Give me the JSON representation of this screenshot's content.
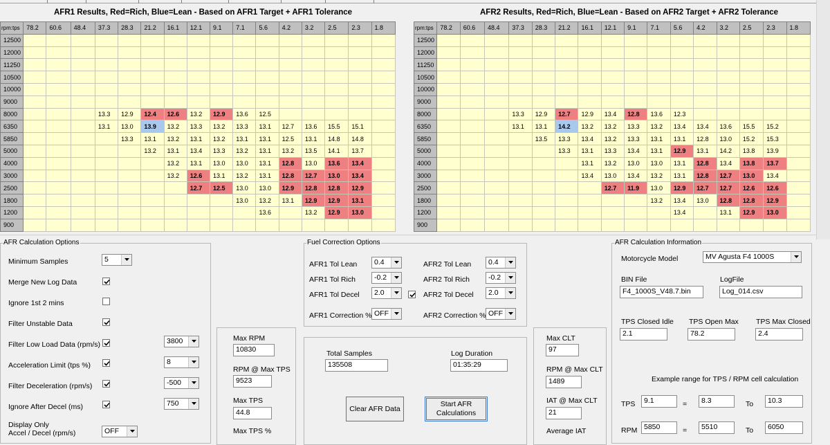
{
  "afr1": {
    "title": "AFR1 Results,  Red=Rich, Blue=Lean - Based on AFR1 Target  + AFR1 Tolerance",
    "corner": "rpm:tps",
    "tps": [
      "78.2",
      "60.6",
      "48.4",
      "37.3",
      "28.3",
      "21.2",
      "16.1",
      "12.1",
      "9.1",
      "7.1",
      "5.6",
      "4.2",
      "3.2",
      "2.5",
      "2.3",
      "1.8"
    ],
    "rows": [
      {
        "rpm": "12500",
        "cells": [
          "",
          "",
          "",
          "",
          "",
          "",
          "",
          "",
          "",
          "",
          "",
          "",
          "",
          "",
          "",
          ""
        ]
      },
      {
        "rpm": "12000",
        "cells": [
          "",
          "",
          "",
          "",
          "",
          "",
          "",
          "",
          "",
          "",
          "",
          "",
          "",
          "",
          "",
          ""
        ]
      },
      {
        "rpm": "11250",
        "cells": [
          "",
          "",
          "",
          "",
          "",
          "",
          "",
          "",
          "",
          "",
          "",
          "",
          "",
          "",
          "",
          ""
        ]
      },
      {
        "rpm": "10500",
        "cells": [
          "",
          "",
          "",
          "",
          "",
          "",
          "",
          "",
          "",
          "",
          "",
          "",
          "",
          "",
          "",
          ""
        ]
      },
      {
        "rpm": "10000",
        "cells": [
          "",
          "",
          "",
          "",
          "",
          "",
          "",
          "",
          "",
          "",
          "",
          "",
          "",
          "",
          "",
          ""
        ]
      },
      {
        "rpm": "9000",
        "cells": [
          "",
          "",
          "",
          "",
          "",
          "",
          "",
          "",
          "",
          "",
          "",
          "",
          "",
          "",
          "",
          ""
        ]
      },
      {
        "rpm": "8000",
        "cells": [
          "",
          "",
          "",
          "13.3",
          "12.9",
          "12.4",
          "12.6",
          "13.2",
          "12.9",
          "13.6",
          "12.5",
          "",
          "",
          "",
          "",
          ""
        ],
        "flags": [
          "",
          "",
          "",
          "",
          "",
          "R",
          "R",
          "",
          "R",
          "",
          "",
          "",
          "",
          "",
          "",
          ""
        ]
      },
      {
        "rpm": "6350",
        "cells": [
          "",
          "",
          "",
          "13.1",
          "13.0",
          "13.9",
          "13.2",
          "13.3",
          "13.2",
          "13.3",
          "13.1",
          "12.7",
          "13.6",
          "15.5",
          "15.1",
          ""
        ],
        "flags": [
          "",
          "",
          "",
          "",
          "",
          "L",
          "",
          "",
          "",
          "",
          "",
          "",
          "",
          "",
          "",
          ""
        ]
      },
      {
        "rpm": "5850",
        "cells": [
          "",
          "",
          "",
          "",
          "13.3",
          "13.1",
          "13.2",
          "13.1",
          "13.2",
          "13.1",
          "13.1",
          "12.5",
          "13.1",
          "14.8",
          "14.8",
          ""
        ]
      },
      {
        "rpm": "5000",
        "cells": [
          "",
          "",
          "",
          "",
          "",
          "13.2",
          "13.1",
          "13.4",
          "13.3",
          "13.2",
          "13.1",
          "13.2",
          "13.5",
          "14.1",
          "13.7",
          ""
        ]
      },
      {
        "rpm": "4000",
        "cells": [
          "",
          "",
          "",
          "",
          "",
          "",
          "13.2",
          "13.1",
          "13.0",
          "13.0",
          "13.1",
          "12.8",
          "13.0",
          "13.6",
          "13.4",
          ""
        ],
        "flags": [
          "",
          "",
          "",
          "",
          "",
          "",
          "",
          "",
          "",
          "",
          "",
          "R",
          "",
          "R",
          "R",
          ""
        ]
      },
      {
        "rpm": "3000",
        "cells": [
          "",
          "",
          "",
          "",
          "",
          "",
          "13.2",
          "12.6",
          "13.1",
          "13.2",
          "13.1",
          "12.8",
          "12.7",
          "13.0",
          "13.4",
          ""
        ],
        "flags": [
          "",
          "",
          "",
          "",
          "",
          "",
          "",
          "R",
          "",
          "",
          "",
          "R",
          "R",
          "R",
          "R",
          ""
        ]
      },
      {
        "rpm": "2500",
        "cells": [
          "",
          "",
          "",
          "",
          "",
          "",
          "",
          "12.7",
          "12.5",
          "13.0",
          "13.0",
          "12.9",
          "12.8",
          "12.8",
          "12.9",
          ""
        ],
        "flags": [
          "",
          "",
          "",
          "",
          "",
          "",
          "",
          "R",
          "R",
          "",
          "",
          "R",
          "R",
          "R",
          "R",
          ""
        ]
      },
      {
        "rpm": "1800",
        "cells": [
          "",
          "",
          "",
          "",
          "",
          "",
          "",
          "",
          "",
          "13.0",
          "13.2",
          "13.1",
          "12.9",
          "12.9",
          "13.1",
          ""
        ],
        "flags": [
          "",
          "",
          "",
          "",
          "",
          "",
          "",
          "",
          "",
          "",
          "",
          "",
          "R",
          "R",
          "R",
          ""
        ]
      },
      {
        "rpm": "1200",
        "cells": [
          "",
          "",
          "",
          "",
          "",
          "",
          "",
          "",
          "",
          "",
          "13.6",
          "",
          "13.2",
          "12.9",
          "13.0",
          ""
        ],
        "flags": [
          "",
          "",
          "",
          "",
          "",
          "",
          "",
          "",
          "",
          "",
          "",
          "",
          "",
          "R",
          "R",
          ""
        ]
      },
      {
        "rpm": "900",
        "cells": [
          "",
          "",
          "",
          "",
          "",
          "",
          "",
          "",
          "",
          "",
          "",
          "",
          "",
          "",
          "",
          ""
        ]
      }
    ]
  },
  "afr2": {
    "title": "AFR2 Results,  Red=Rich, Blue=Lean - Based on AFR2 Target  + AFR2 Tolerance",
    "corner": "rpm:tps",
    "tps": [
      "78.2",
      "60.6",
      "48.4",
      "37.3",
      "28.3",
      "21.2",
      "16.1",
      "12.1",
      "9.1",
      "7.1",
      "5.6",
      "4.2",
      "3.2",
      "2.5",
      "2.3",
      "1.8"
    ],
    "rows": [
      {
        "rpm": "12500",
        "cells": [
          "",
          "",
          "",
          "",
          "",
          "",
          "",
          "",
          "",
          "",
          "",
          "",
          "",
          "",
          "",
          ""
        ]
      },
      {
        "rpm": "12000",
        "cells": [
          "",
          "",
          "",
          "",
          "",
          "",
          "",
          "",
          "",
          "",
          "",
          "",
          "",
          "",
          "",
          ""
        ]
      },
      {
        "rpm": "11250",
        "cells": [
          "",
          "",
          "",
          "",
          "",
          "",
          "",
          "",
          "",
          "",
          "",
          "",
          "",
          "",
          "",
          ""
        ]
      },
      {
        "rpm": "10500",
        "cells": [
          "",
          "",
          "",
          "",
          "",
          "",
          "",
          "",
          "",
          "",
          "",
          "",
          "",
          "",
          "",
          ""
        ]
      },
      {
        "rpm": "10000",
        "cells": [
          "",
          "",
          "",
          "",
          "",
          "",
          "",
          "",
          "",
          "",
          "",
          "",
          "",
          "",
          "",
          ""
        ]
      },
      {
        "rpm": "9000",
        "cells": [
          "",
          "",
          "",
          "",
          "",
          "",
          "",
          "",
          "",
          "",
          "",
          "",
          "",
          "",
          "",
          ""
        ]
      },
      {
        "rpm": "8000",
        "cells": [
          "",
          "",
          "",
          "13.3",
          "12.9",
          "12.7",
          "12.9",
          "13.4",
          "12.8",
          "13.6",
          "12.3",
          "",
          "",
          "",
          "",
          ""
        ],
        "flags": [
          "",
          "",
          "",
          "",
          "",
          "R",
          "",
          "",
          "R",
          "",
          "",
          "",
          "",
          "",
          "",
          ""
        ]
      },
      {
        "rpm": "6350",
        "cells": [
          "",
          "",
          "",
          "13.1",
          "13.1",
          "14.2",
          "13.2",
          "13.2",
          "13.3",
          "13.2",
          "13.4",
          "13.4",
          "13.6",
          "15.5",
          "15.2",
          ""
        ],
        "flags": [
          "",
          "",
          "",
          "",
          "",
          "L",
          "",
          "",
          "",
          "",
          "",
          "",
          "",
          "",
          "",
          ""
        ]
      },
      {
        "rpm": "5850",
        "cells": [
          "",
          "",
          "",
          "",
          "13.5",
          "13.3",
          "13.4",
          "13.2",
          "13.3",
          "13.1",
          "13.1",
          "12.8",
          "13.0",
          "15.2",
          "15.3",
          ""
        ]
      },
      {
        "rpm": "5000",
        "cells": [
          "",
          "",
          "",
          "",
          "",
          "13.3",
          "13.1",
          "13.3",
          "13.4",
          "13.1",
          "12.9",
          "13.1",
          "14.2",
          "13.8",
          "13.9",
          ""
        ],
        "flags": [
          "",
          "",
          "",
          "",
          "",
          "",
          "",
          "",
          "",
          "",
          "R",
          "",
          "",
          "",
          "",
          ""
        ]
      },
      {
        "rpm": "4000",
        "cells": [
          "",
          "",
          "",
          "",
          "",
          "",
          "13.1",
          "13.2",
          "13.0",
          "13.0",
          "13.1",
          "12.8",
          "13.4",
          "13.8",
          "13.7",
          ""
        ],
        "flags": [
          "",
          "",
          "",
          "",
          "",
          "",
          "",
          "",
          "",
          "",
          "",
          "R",
          "",
          "R",
          "R",
          ""
        ]
      },
      {
        "rpm": "3000",
        "cells": [
          "",
          "",
          "",
          "",
          "",
          "",
          "13.4",
          "13.0",
          "13.4",
          "13.2",
          "13.1",
          "12.8",
          "12.7",
          "13.0",
          "13.4",
          ""
        ],
        "flags": [
          "",
          "",
          "",
          "",
          "",
          "",
          "",
          "",
          "",
          "",
          "",
          "R",
          "R",
          "R",
          "",
          ""
        ]
      },
      {
        "rpm": "2500",
        "cells": [
          "",
          "",
          "",
          "",
          "",
          "",
          "",
          "12.7",
          "11.9",
          "13.0",
          "12.9",
          "12.7",
          "12.7",
          "12.6",
          "12.6",
          ""
        ],
        "flags": [
          "",
          "",
          "",
          "",
          "",
          "",
          "",
          "R",
          "R",
          "",
          "R",
          "R",
          "R",
          "R",
          "R",
          ""
        ]
      },
      {
        "rpm": "1800",
        "cells": [
          "",
          "",
          "",
          "",
          "",
          "",
          "",
          "",
          "",
          "13.2",
          "13.4",
          "13.0",
          "12.8",
          "12.8",
          "12.9",
          ""
        ],
        "flags": [
          "",
          "",
          "",
          "",
          "",
          "",
          "",
          "",
          "",
          "",
          "",
          "",
          "R",
          "R",
          "R",
          ""
        ]
      },
      {
        "rpm": "1200",
        "cells": [
          "",
          "",
          "",
          "",
          "",
          "",
          "",
          "",
          "",
          "",
          "13.4",
          "",
          "13.1",
          "12.9",
          "13.0",
          ""
        ],
        "flags": [
          "",
          "",
          "",
          "",
          "",
          "",
          "",
          "",
          "",
          "",
          "",
          "",
          "",
          "R",
          "R",
          ""
        ]
      },
      {
        "rpm": "900",
        "cells": [
          "",
          "",
          "",
          "",
          "",
          "",
          "",
          "",
          "",
          "",
          "",
          "",
          "",
          "",
          "",
          ""
        ]
      }
    ]
  },
  "calc_options": {
    "title": "AFR Calculation Options",
    "min_samples_label": "Minimum Samples",
    "min_samples_value": "5",
    "merge_label": "Merge New Log Data",
    "ignore_label": "Ignore 1st 2 mins",
    "filter_unstable_label": "Filter Unstable Data",
    "filter_low_label": "Filter Low Load Data (rpm/s)",
    "filter_low_value": "3800",
    "accel_label": "Acceleration Limit (tps %)",
    "accel_value": "8",
    "filter_decel_label": "Filter Deceleration (rpm/s)",
    "filter_decel_value": "-500",
    "ignore_after_label": "Ignore After Decel (ms)",
    "ignore_after_value": "750",
    "display_only_label1": "Display Only",
    "display_only_label2": "Accel / Decel (rpm/s)",
    "display_only_value": "OFF"
  },
  "fuel_correction": {
    "title": "Fuel Correction Options",
    "afr1_lean_label": "AFR1 Tol Lean",
    "afr1_lean_value": "0.4",
    "afr1_rich_label": "AFR1 Tol Rich",
    "afr1_rich_value": "-0.2",
    "afr1_decel_label": "AFR1 Tol Decel",
    "afr1_decel_value": "2.0",
    "afr1_corr_label": "AFR1 Correction %",
    "afr1_corr_value": "OFF",
    "afr2_lean_label": "AFR2 Tol Lean",
    "afr2_lean_value": "0.4",
    "afr2_rich_label": "AFR2 Tol Rich",
    "afr2_rich_value": "-0.2",
    "afr2_decel_label": "AFR2 Tol Decel",
    "afr2_decel_value": "2.0",
    "afr2_corr_label": "AFR2 Correction %",
    "afr2_corr_value": "OFF"
  },
  "stats_left": {
    "max_rpm_label": "Max RPM",
    "max_rpm_value": "10830",
    "rpm_max_tps_label": "RPM @ Max TPS",
    "rpm_max_tps_value": "9523",
    "max_tps_label": "Max TPS",
    "max_tps_value": "44.8",
    "max_tps_pct_label": "Max TPS %"
  },
  "samples": {
    "total_label": "Total Samples",
    "total_value": "135508",
    "duration_label": "Log Duration",
    "duration_value": "01:35:29",
    "clear_label": "Clear AFR Data",
    "start_label_1": "Start AFR",
    "start_label_2": "Calculations"
  },
  "stats_right": {
    "max_clt_label": "Max CLT",
    "max_clt_value": "97",
    "rpm_max_clt_label": "RPM @ Max CLT",
    "rpm_max_clt_value": "1489",
    "iat_max_clt_label": "IAT @ Max CLT",
    "iat_max_clt_value": "21",
    "avg_iat_label": "Average IAT"
  },
  "calc_info": {
    "title": "AFR Calculation Information",
    "model_label": "Motorcycle Model",
    "model_value": "MV Agusta F4 1000S",
    "bin_label": "BIN File",
    "bin_value": "F4_1000S_V48.7.bin",
    "log_label": "LogFile",
    "log_value": "Log_014.csv",
    "tps_idle_label": "TPS Closed Idle",
    "tps_idle_value": "2.1",
    "tps_open_label": "TPS Open Max",
    "tps_open_value": "78.2",
    "tps_closed_label": "TPS Max Closed",
    "tps_closed_value": "2.4",
    "example_label": "Example range for TPS / RPM cell calculation",
    "tps_label": "TPS",
    "tps_a": "9.1",
    "tps_b": "8.3",
    "tps_c": "10.3",
    "rpm_label": "RPM",
    "rpm_a": "5850",
    "rpm_b": "5510",
    "rpm_c": "6050",
    "eq": "=",
    "to": "To"
  }
}
